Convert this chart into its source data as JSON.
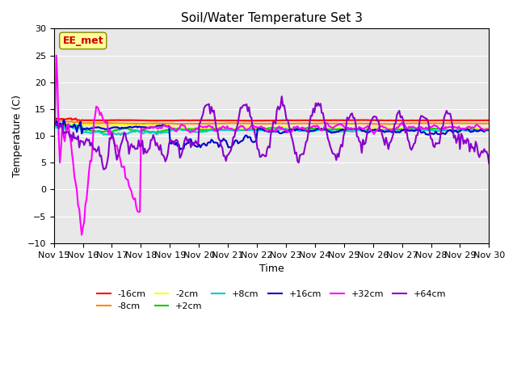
{
  "title": "Soil/Water Temperature Set 3",
  "xlabel": "Time",
  "ylabel": "Temperature (C)",
  "ylim": [
    -10,
    30
  ],
  "xlim": [
    0,
    15
  ],
  "x_tick_labels": [
    "Nov 15",
    "Nov 16",
    "Nov 17",
    "Nov 18",
    "Nov 19",
    "Nov 20",
    "Nov 21",
    "Nov 22",
    "Nov 23",
    "Nov 24",
    "Nov 25",
    "Nov 26",
    "Nov 27",
    "Nov 28",
    "Nov 29",
    "Nov 30"
  ],
  "annotation_text": "EE_met",
  "annotation_color": "#cc0000",
  "annotation_bg": "#ffff99",
  "annotation_border": "#888800",
  "background_color": "#e8e8e8",
  "series": [
    {
      "label": "-16cm",
      "color": "#ff0000",
      "lw": 1.5
    },
    {
      "label": "-8cm",
      "color": "#ff8800",
      "lw": 1.5
    },
    {
      "label": "-2cm",
      "color": "#ffff00",
      "lw": 1.5
    },
    {
      "label": "+2cm",
      "color": "#00cc00",
      "lw": 1.5
    },
    {
      "label": "+8cm",
      "color": "#00cccc",
      "lw": 1.5
    },
    {
      "label": "+16cm",
      "color": "#0000cc",
      "lw": 1.5
    },
    {
      "label": "+32cm",
      "color": "#ff00ff",
      "lw": 1.5
    },
    {
      "label": "+64cm",
      "color": "#8800cc",
      "lw": 1.5
    }
  ]
}
